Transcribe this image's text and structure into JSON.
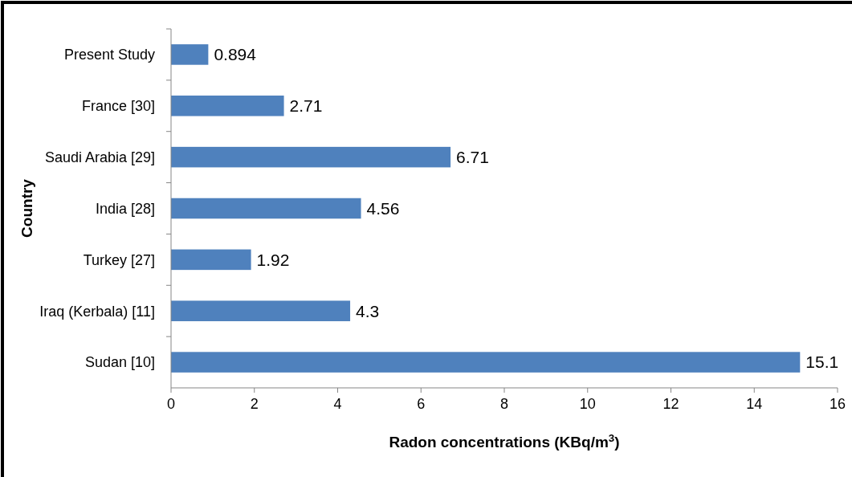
{
  "chart_data": {
    "type": "bar",
    "orientation": "horizontal",
    "xlabel": "Radon concentrations (KBq/m$^{3}$)",
    "ylabel": "Country",
    "categories": [
      "Present Study",
      "France [30]",
      "Saudi Arabia [29]",
      "India [28]",
      "Turkey [27]",
      "Iraq (Kerbala) [11]",
      "Sudan [10]"
    ],
    "values": [
      0.894,
      2.71,
      6.71,
      4.56,
      1.92,
      4.3,
      15.1
    ],
    "color": "#4f81bd",
    "xlim": [
      0,
      16
    ],
    "xticks": [
      0,
      2,
      4,
      6,
      8,
      10,
      12,
      14,
      16
    ],
    "data_labels": true,
    "grid": false
  }
}
